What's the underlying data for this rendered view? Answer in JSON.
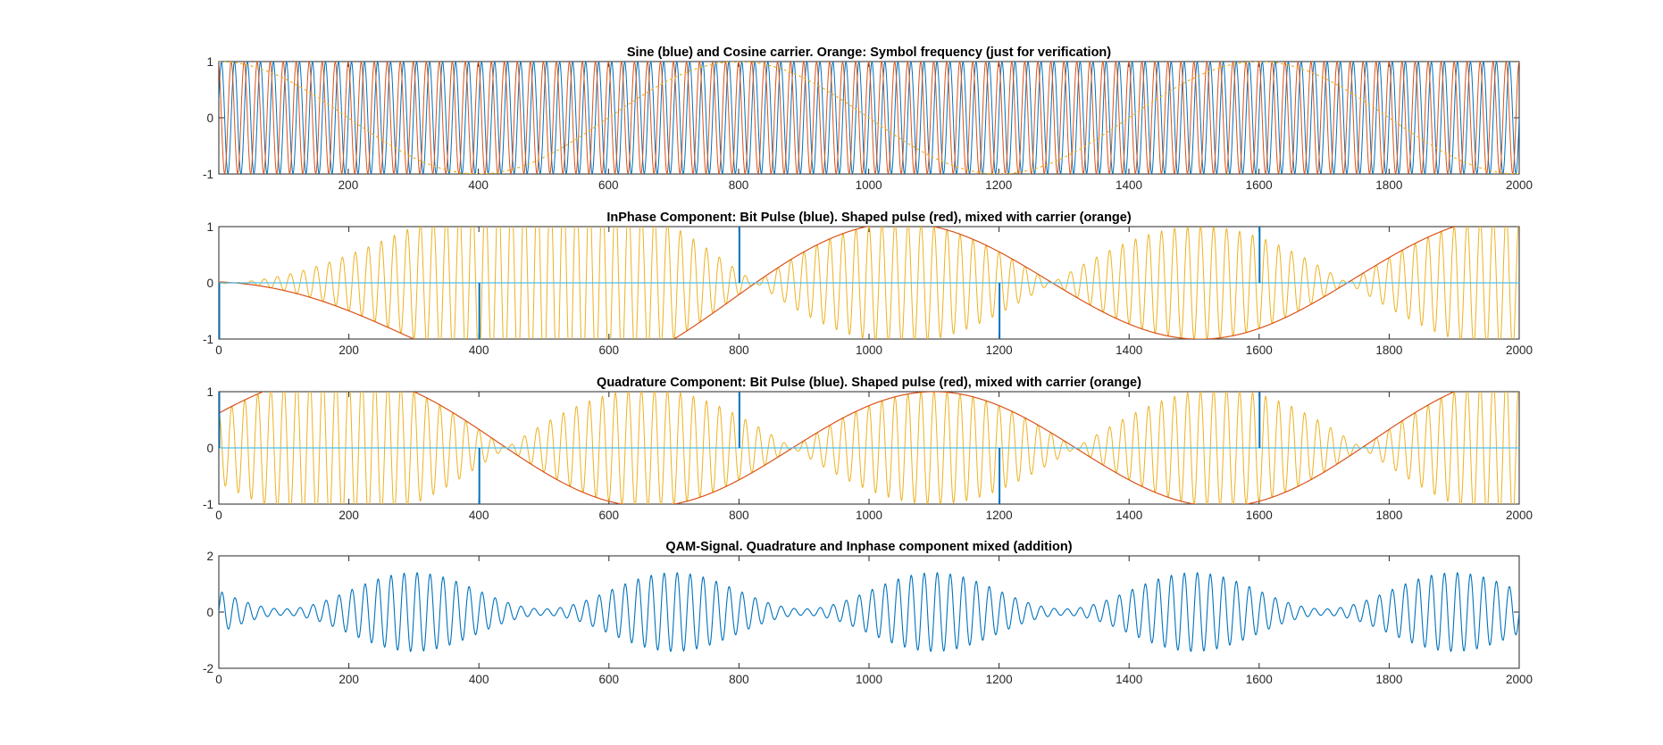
{
  "figure": {
    "background": "#ffffff"
  },
  "colors": {
    "blue": "#0072BD",
    "orange": "#EDB120",
    "red": "#D95319",
    "axis": "#262626"
  },
  "chart_data": [
    {
      "type": "line",
      "title": "Sine (blue) and Cosine carrier. Orange: Symbol frequency (just for verification)",
      "xlim": [
        1,
        2000
      ],
      "ylim": [
        -1,
        1
      ],
      "xticks": [
        200,
        400,
        600,
        800,
        1000,
        1200,
        1400,
        1600,
        1800,
        2000
      ],
      "yticks": [
        -1,
        0,
        1
      ],
      "grid": false,
      "carrier_period": 20,
      "symbol_period": 800,
      "series": [
        {
          "color": "#0072BD",
          "fn": "sin",
          "period": 20,
          "amplitude": 1
        },
        {
          "color": "#D95319",
          "fn": "cos",
          "period": 20,
          "amplitude": 1
        },
        {
          "color": "#EDB120",
          "fn": "cos",
          "period": 800,
          "amplitude": 1
        }
      ]
    },
    {
      "type": "line",
      "title": "InPhase Component: Bit Pulse (blue). Shaped pulse (red), mixed with carrier (orange)",
      "xlim": [
        0,
        2000
      ],
      "ylim": [
        -1,
        1
      ],
      "xticks": [
        0,
        200,
        400,
        600,
        800,
        1000,
        1200,
        1400,
        1600,
        1800,
        2000
      ],
      "yticks": [
        -1,
        0,
        1
      ],
      "grid": false,
      "symbol_period": 400,
      "carrier_period": 20,
      "bit_pulses": [
        {
          "x": 0,
          "value": -1
        },
        {
          "x": 400,
          "value": -1
        },
        {
          "x": 800,
          "value": 1
        },
        {
          "x": 1200,
          "value": -1
        },
        {
          "x": 1600,
          "value": 1
        }
      ],
      "shaped_pulse_peaks": [
        {
          "x": 300,
          "value": -1
        },
        {
          "x": 700,
          "value": -1
        },
        {
          "x": 1100,
          "value": 1
        },
        {
          "x": 1500,
          "value": -1
        },
        {
          "x": 1900,
          "value": 1
        }
      ]
    },
    {
      "type": "line",
      "title": "Quadrature Component: Bit Pulse (blue). Shaped pulse (red), mixed with carrier (orange)",
      "xlim": [
        0,
        2000
      ],
      "ylim": [
        -1,
        1
      ],
      "xticks": [
        0,
        200,
        400,
        600,
        800,
        1000,
        1200,
        1400,
        1600,
        1800,
        2000
      ],
      "yticks": [
        -1,
        0,
        1
      ],
      "grid": false,
      "symbol_period": 400,
      "carrier_period": 20,
      "bit_pulses": [
        {
          "x": 0,
          "value": 1
        },
        {
          "x": 400,
          "value": -1
        },
        {
          "x": 800,
          "value": 1
        },
        {
          "x": 1200,
          "value": -1
        },
        {
          "x": 1600,
          "value": 1
        }
      ],
      "shaped_pulse_peaks": [
        {
          "x": 300,
          "value": 1
        },
        {
          "x": 700,
          "value": -1
        },
        {
          "x": 1100,
          "value": 1
        },
        {
          "x": 1500,
          "value": -1
        },
        {
          "x": 1900,
          "value": 1
        }
      ]
    },
    {
      "type": "line",
      "title": "QAM-Signal. Quadrature and Inphase component mixed (addition)",
      "xlim": [
        0,
        2000
      ],
      "ylim": [
        -2,
        2
      ],
      "xticks": [
        0,
        200,
        400,
        600,
        800,
        1000,
        1200,
        1400,
        1600,
        1800,
        2000
      ],
      "yticks": [
        -2,
        0,
        2
      ],
      "grid": false,
      "envelope_peak": 1.4,
      "burst_centers": [
        300,
        700,
        1100,
        1500,
        1900
      ],
      "series": [
        {
          "color": "#0072BD"
        }
      ]
    }
  ]
}
